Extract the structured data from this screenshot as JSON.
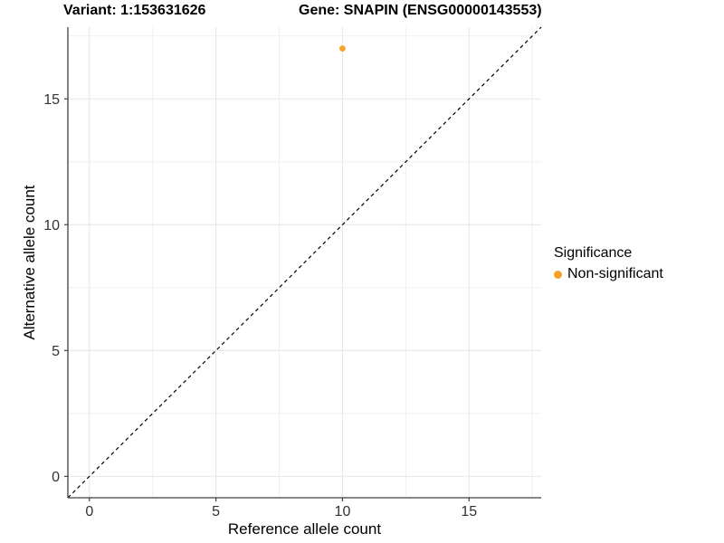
{
  "header": {
    "variant_title": "Variant: 1:153631626",
    "gene_title": "Gene: SNAPIN (ENSG00000143553)"
  },
  "chart_data": {
    "type": "scatter",
    "title_left": "Variant: 1:153631626",
    "title_right": "Gene: SNAPIN (ENSG00000143553)",
    "xlabel": "Reference allele count",
    "ylabel": "Alternative allele count",
    "xlim": [
      -0.85,
      17.85
    ],
    "ylim": [
      -0.85,
      17.85
    ],
    "x_ticks": [
      0,
      5,
      10,
      15
    ],
    "y_ticks": [
      0,
      5,
      10,
      15
    ],
    "x_minor_ticks": [
      2.5,
      7.5,
      12.5,
      17.5
    ],
    "y_minor_ticks": [
      2.5,
      7.5,
      12.5,
      17.5
    ],
    "grid": true,
    "identity_line": {
      "style": "dashed",
      "from_xy": [
        -0.85,
        -0.85
      ],
      "to_xy": [
        17.85,
        17.85
      ],
      "color": "#000000"
    },
    "series": [
      {
        "name": "Non-significant",
        "color": "#F9A229",
        "points": [
          {
            "x": 10,
            "y": 17
          }
        ]
      }
    ],
    "legend": {
      "title": "Significance",
      "position": "right",
      "items": [
        {
          "label": "Non-significant",
          "color": "#F9A229"
        }
      ]
    },
    "colors": {
      "background": "#FFFFFF",
      "axis_line": "#404040",
      "tick_label": "#333333",
      "grid_major": "#E7E7E7",
      "grid_minor": "#F0F0F0",
      "point": "#F9A229",
      "dashed_line": "#000000"
    }
  }
}
